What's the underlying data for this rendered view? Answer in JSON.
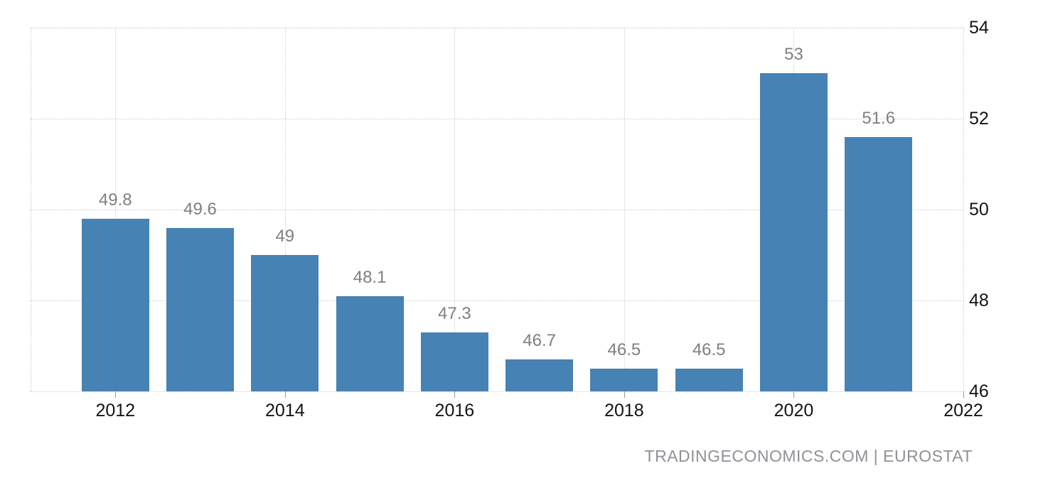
{
  "chart_data": {
    "type": "bar",
    "title": "",
    "categories": [
      "2012",
      "2013",
      "2014",
      "2015",
      "2016",
      "2017",
      "2018",
      "2019",
      "2020",
      "2021"
    ],
    "values": [
      49.8,
      49.6,
      49,
      48.1,
      47.3,
      46.7,
      46.5,
      46.5,
      53,
      51.6
    ],
    "bar_labels": [
      "49.8",
      "49.6",
      "49",
      "48.1",
      "47.3",
      "46.7",
      "46.5",
      "46.5",
      "53",
      "51.6"
    ],
    "x_tick_years": [
      2012,
      2014,
      2016,
      2018,
      2020,
      2022
    ],
    "x_tick_labels": [
      "2012",
      "2014",
      "2016",
      "2018",
      "2020",
      "2022"
    ],
    "xlim": [
      2011,
      2022
    ],
    "y_ticks": [
      46,
      48,
      50,
      52,
      54
    ],
    "y_tick_labels": [
      "46",
      "48",
      "50",
      "52",
      "54"
    ],
    "ylim": [
      46,
      54
    ],
    "grid": "dotted",
    "legend": "none",
    "y_axis_side": "right",
    "colors": {
      "bar": "#4782b4",
      "grid": "#cdcdcd",
      "axis_text": "#141414",
      "bar_label": "#7f7f7f",
      "attribution": "#8e9196"
    }
  },
  "footer": {
    "attribution": "TRADINGECONOMICS.COM | EUROSTAT"
  }
}
